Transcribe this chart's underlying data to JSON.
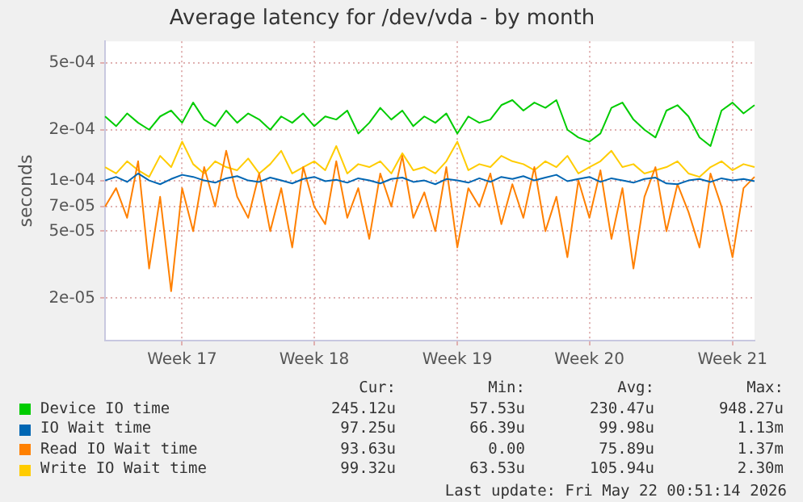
{
  "chart_data": {
    "type": "line",
    "title": "Average latency for /dev/vda - by month",
    "ylabel": "seconds",
    "log": "y",
    "grid": true,
    "legend": "bottom",
    "categories": [
      null,
      null,
      null,
      null,
      null,
      null,
      null,
      "Week 17",
      null,
      null,
      null,
      null,
      null,
      null,
      null,
      null,
      null,
      null,
      null,
      "Week 18",
      null,
      null,
      null,
      null,
      null,
      null,
      null,
      null,
      null,
      null,
      null,
      null,
      "Week 19",
      null,
      null,
      null,
      null,
      null,
      null,
      null,
      null,
      null,
      null,
      null,
      "Week 20",
      null,
      null,
      null,
      null,
      null,
      null,
      null,
      null,
      null,
      null,
      null,
      null,
      "Week 21",
      null,
      null
    ],
    "ylim": [
      1.12e-05,
      0.00067
    ],
    "yticks": [
      {
        "value": 2e-05,
        "label": "2e-05"
      },
      {
        "value": 5e-05,
        "label": "5e-05"
      },
      {
        "value": 7e-05,
        "label": "7e-05"
      },
      {
        "value": 0.0001,
        "label": "1e-04"
      },
      {
        "value": 0.0002,
        "label": "2e-04"
      },
      {
        "value": 0.0005,
        "label": "5e-04"
      }
    ],
    "series": [
      {
        "name": "Device IO time",
        "color": "#00cc00",
        "values": [
          0.00024,
          0.00021,
          0.00025,
          0.00022,
          0.0002,
          0.00024,
          0.00026,
          0.00022,
          0.00029,
          0.00023,
          0.00021,
          0.00026,
          0.00022,
          0.00025,
          0.00023,
          0.0002,
          0.00024,
          0.00022,
          0.00025,
          0.00021,
          0.00024,
          0.00023,
          0.00026,
          0.00019,
          0.00022,
          0.00027,
          0.00023,
          0.00026,
          0.00021,
          0.00024,
          0.00022,
          0.00025,
          0.00019,
          0.00024,
          0.00022,
          0.00023,
          0.00028,
          0.0003,
          0.00026,
          0.00029,
          0.00027,
          0.0003,
          0.0002,
          0.00018,
          0.00017,
          0.00019,
          0.00027,
          0.00029,
          0.00023,
          0.0002,
          0.00018,
          0.00026,
          0.00028,
          0.00024,
          0.00018,
          0.00016,
          0.00026,
          0.00029,
          0.00025,
          0.00028
        ]
      },
      {
        "name": "IO Wait time",
        "color": "#0066b3",
        "values": [
          0.0001,
          0.000105,
          9.8e-05,
          0.00011,
          0.0001,
          9.5e-05,
          0.000102,
          0.000108,
          0.000105,
          0.0001,
          9.7e-05,
          0.000103,
          0.000106,
          0.0001,
          9.8e-05,
          0.000104,
          0.0001,
          9.6e-05,
          0.000102,
          0.000105,
          9.9e-05,
          0.000101,
          9.7e-05,
          0.000103,
          0.0001,
          9.6e-05,
          0.000102,
          0.000104,
          9.8e-05,
          0.0001,
          9.5e-05,
          0.000102,
          0.0001,
          9.7e-05,
          0.000103,
          9.8e-05,
          0.000105,
          0.000102,
          0.000106,
          0.0001,
          0.000104,
          0.000108,
          9.9e-05,
          0.000102,
          0.000105,
          9.8e-05,
          0.000103,
          0.0001,
          9.7e-05,
          0.000102,
          0.000104,
          9.6e-05,
          9.5e-05,
          0.0001,
          0.000102,
          9.8e-05,
          0.000103,
          0.0001,
          0.000102,
          9.9e-05
        ]
      },
      {
        "name": "Read IO Wait time",
        "color": "#ff8000",
        "values": [
          7e-05,
          9e-05,
          6e-05,
          0.00013,
          3e-05,
          8e-05,
          2.2e-05,
          9e-05,
          5e-05,
          0.00012,
          7e-05,
          0.00015,
          8e-05,
          6e-05,
          0.00011,
          5e-05,
          9e-05,
          4e-05,
          0.00012,
          7e-05,
          5.5e-05,
          0.00013,
          6e-05,
          9e-05,
          4.5e-05,
          0.00011,
          7e-05,
          0.00014,
          6e-05,
          8.5e-05,
          5e-05,
          0.00012,
          4e-05,
          9e-05,
          7e-05,
          0.00011,
          5.5e-05,
          9.5e-05,
          6e-05,
          0.00012,
          5e-05,
          8e-05,
          3.5e-05,
          0.0001,
          6e-05,
          0.000115,
          4.5e-05,
          9e-05,
          3e-05,
          8e-05,
          0.00012,
          5e-05,
          9.5e-05,
          6.5e-05,
          4e-05,
          0.00011,
          7e-05,
          3.5e-05,
          9e-05,
          0.000105
        ]
      },
      {
        "name": "Write IO Wait time",
        "color": "#ffcc00",
        "values": [
          0.00012,
          0.00011,
          0.00013,
          0.000115,
          0.000105,
          0.00014,
          0.00012,
          0.00017,
          0.000125,
          0.00011,
          0.00013,
          0.00012,
          0.000115,
          0.000135,
          0.00011,
          0.000125,
          0.00015,
          0.00011,
          0.00012,
          0.00013,
          0.000115,
          0.00016,
          0.00011,
          0.000125,
          0.00012,
          0.00013,
          0.00011,
          0.000145,
          0.000115,
          0.00012,
          0.00011,
          0.00013,
          0.00017,
          0.000115,
          0.000125,
          0.00012,
          0.00014,
          0.00013,
          0.000125,
          0.000115,
          0.00013,
          0.00012,
          0.00014,
          0.00011,
          0.00012,
          0.00013,
          0.00015,
          0.00012,
          0.000125,
          0.00011,
          0.000115,
          0.00012,
          0.00013,
          0.00011,
          0.000105,
          0.00012,
          0.00013,
          0.000115,
          0.000125,
          0.00012
        ]
      }
    ],
    "annotations": [
      "Cur:",
      "Min:",
      "Avg:",
      "Max:",
      "245.12u",
      "57.53u",
      "230.47u",
      "948.27u",
      "97.25u",
      "66.39u",
      "99.98u",
      "1.13m",
      "93.63u",
      "0.00",
      "75.89u",
      "1.37m",
      "99.32u",
      "63.53u",
      "105.94u",
      "2.30m",
      "Last update: Fri May 22 00:51:14 2026"
    ]
  }
}
